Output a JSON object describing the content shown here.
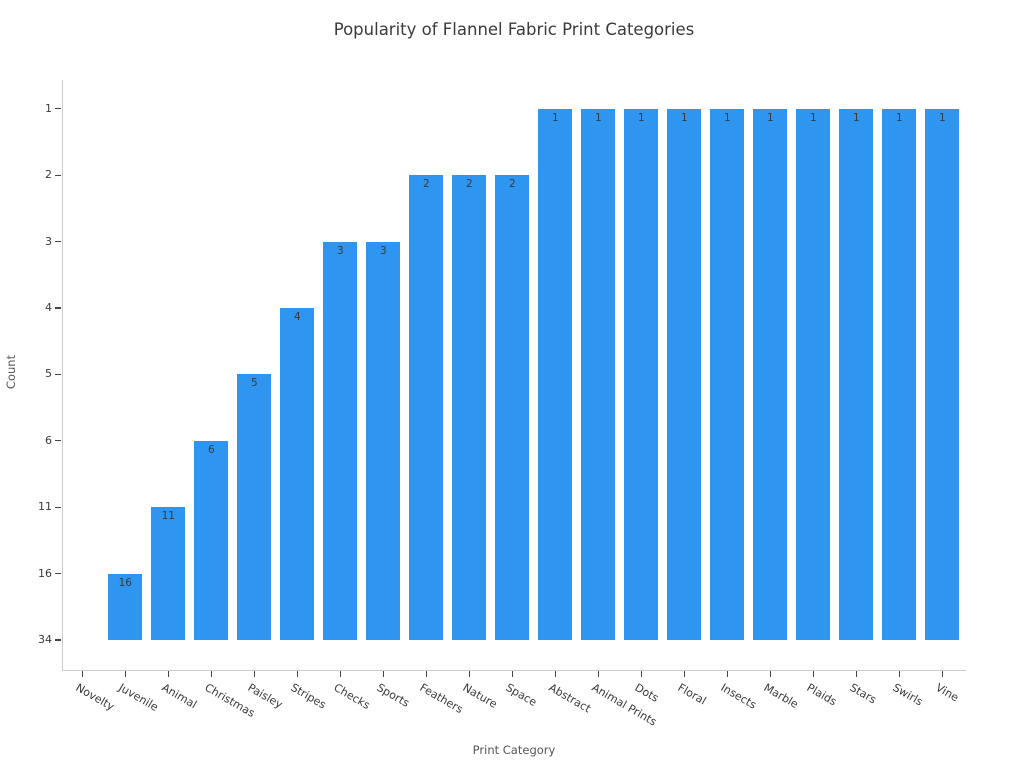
{
  "title": "Popularity of Flannel Fabric Print Categories",
  "colors": {
    "bar": "#2e96f0",
    "title_text": "#3a3a3a",
    "tick_text": "#3a3a3a",
    "axis_label_text": "#575757",
    "spine": "#cccccc",
    "tick_mark": "#444444",
    "bar_value_text": "#3a3a3a",
    "background": "#ffffff"
  },
  "chart_data": {
    "type": "bar",
    "title": "Popularity of Flannel Fabric Print Categories",
    "xlabel": "Print Category",
    "ylabel": "Count",
    "categories": [
      "Novelty",
      "Juvenile",
      "Animal",
      "Christmas",
      "Paisley",
      "Stripes",
      "Checks",
      "Sports",
      "Feathers",
      "Nature",
      "Space",
      "Abstract",
      "Animal Prints",
      "Dots",
      "Floral",
      "Insects",
      "Marble",
      "Plaids",
      "Stars",
      "Swirls",
      "Vine"
    ],
    "values": [
      34,
      16,
      11,
      6,
      5,
      4,
      3,
      3,
      2,
      2,
      2,
      1,
      1,
      1,
      1,
      1,
      1,
      1,
      1,
      1,
      1
    ],
    "bar_value_labels": [
      "",
      "16",
      "11",
      "6",
      "5",
      "4",
      "3",
      "3",
      "2",
      "2",
      "2",
      "1",
      "1",
      "1",
      "1",
      "1",
      "1",
      "1",
      "1",
      "1",
      "1"
    ],
    "y_axis": {
      "type": "categorical",
      "tick_labels_top_to_bottom": [
        "1",
        "2",
        "3",
        "4",
        "5",
        "6",
        "11",
        "16",
        "34"
      ],
      "levels_bottom_to_top": [
        "34",
        "16",
        "11",
        "6",
        "5",
        "4",
        "3",
        "2",
        "1"
      ],
      "note": "counts plotted as categories: bar height equals the level index of its count value; the '34' bar (Novelty) has zero height"
    },
    "grid": false,
    "legend": null,
    "bar_color": "#2e96f0"
  }
}
